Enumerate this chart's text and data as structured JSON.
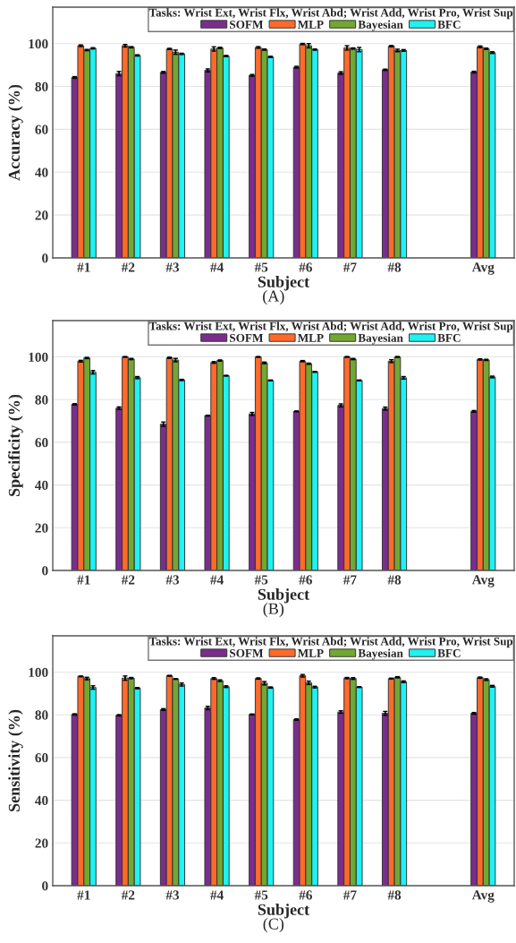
{
  "chart_data": [
    {
      "type": "bar",
      "xlabel": "Subject",
      "ylabel": "Accuracy (%)",
      "legend_title": "Tasks: Wrist Ext, Wrist Flx, Wrist Abd; Wrist Add, Wrist Pro, Wrist Sup",
      "annotations": [
        "(A)"
      ],
      "categories": [
        "#1",
        "#2",
        "#3",
        "#4",
        "#5",
        "#6",
        "#7",
        "#8",
        null,
        "Avg"
      ],
      "ylim": [
        0,
        117
      ],
      "yticks": [
        0,
        20,
        40,
        60,
        80,
        100
      ],
      "grid": "y",
      "legend": "top right",
      "series": [
        {
          "name": "SOFM",
          "color": "#7b2d8e",
          "values": [
            84.2,
            86,
            86.6,
            87.5,
            85.2,
            89,
            86.3,
            87.8,
            null,
            86.7
          ],
          "errors": [
            0.4,
            1,
            0.4,
            0.7,
            0.4,
            0.4,
            0.6,
            0.3,
            null,
            0.4
          ]
        },
        {
          "name": "MLP",
          "color": "#ff6a2b",
          "values": [
            99,
            99,
            97.5,
            97.5,
            98.2,
            99.8,
            98,
            98.8,
            null,
            98.5
          ],
          "errors": [
            0.4,
            0.6,
            0.3,
            1,
            0.4,
            0.3,
            1,
            0.3,
            null,
            0.4
          ]
        },
        {
          "name": "Bayesian",
          "color": "#72a832",
          "values": [
            97,
            98.3,
            96,
            98,
            97.2,
            99,
            97.7,
            96.8,
            null,
            97.6
          ],
          "errors": [
            0.3,
            0.3,
            1,
            0.3,
            0.3,
            1,
            0.3,
            0.6,
            null,
            0.3
          ]
        },
        {
          "name": "BFC",
          "color": "#1ef2f2",
          "values": [
            97.8,
            94.5,
            95.2,
            94.2,
            93.8,
            97.2,
            97.2,
            96.8,
            null,
            95.8
          ],
          "errors": [
            0.3,
            0.3,
            0.3,
            0.3,
            0.3,
            0.3,
            1,
            0.4,
            null,
            0.4
          ]
        }
      ]
    },
    {
      "type": "bar",
      "xlabel": "Subject",
      "ylabel": "Specificity (%)",
      "legend_title": "Tasks: Wrist Ext, Wrist Flx, Wrist Abd; Wrist Add, Wrist Pro, Wrist Sup",
      "annotations": [
        "(B)"
      ],
      "categories": [
        "#1",
        "#2",
        "#3",
        "#4",
        "#5",
        "#6",
        "#7",
        "#8",
        null,
        "Avg"
      ],
      "ylim": [
        0,
        117
      ],
      "yticks": [
        0,
        20,
        40,
        60,
        80,
        100
      ],
      "grid": "y",
      "legend": "top right",
      "series": [
        {
          "name": "SOFM",
          "color": "#7b2d8e",
          "values": [
            77.8,
            76,
            68.5,
            72.5,
            73.3,
            74.5,
            77.3,
            75.8,
            null,
            74.5
          ],
          "errors": [
            0.3,
            0.6,
            1,
            0.2,
            0.7,
            0.2,
            0.7,
            0.7,
            null,
            0.4
          ]
        },
        {
          "name": "MLP",
          "color": "#ff6a2b",
          "values": [
            98,
            100,
            99.6,
            97.4,
            100,
            98,
            100,
            98,
            null,
            98.8
          ],
          "errors": [
            0.4,
            0.2,
            0.3,
            0.4,
            0.2,
            0.3,
            0.2,
            0.7,
            null,
            0.3
          ]
        },
        {
          "name": "Bayesian",
          "color": "#72a832",
          "values": [
            99.5,
            99,
            98.5,
            98.3,
            97.2,
            96.8,
            99,
            100,
            null,
            98.6
          ],
          "errors": [
            0.3,
            0.3,
            0.8,
            0.3,
            0.4,
            0.3,
            0.3,
            0.2,
            null,
            0.3
          ]
        },
        {
          "name": "BFC",
          "color": "#1ef2f2",
          "values": [
            92.8,
            90.3,
            89.2,
            91.2,
            89,
            93,
            89,
            90.2,
            null,
            90.6
          ],
          "errors": [
            0.8,
            0.5,
            0.3,
            0.2,
            0.2,
            0.2,
            0.2,
            0.6,
            null,
            0.4
          ]
        }
      ]
    },
    {
      "type": "bar",
      "xlabel": "Subject",
      "ylabel": "Sensitivity (%)",
      "legend_title": "Tasks: Wrist Ext, Wrist Flx, Wrist Abd; Wrist Add, Wrist Pro, Wrist Sup",
      "annotations": [
        "(C)"
      ],
      "categories": [
        "#1",
        "#2",
        "#3",
        "#4",
        "#5",
        "#6",
        "#7",
        "#8",
        null,
        "Avg"
      ],
      "ylim": [
        0,
        117
      ],
      "yticks": [
        0,
        20,
        40,
        60,
        80,
        100
      ],
      "grid": "y",
      "legend": "top right",
      "series": [
        {
          "name": "SOFM",
          "color": "#7b2d8e",
          "values": [
            80.2,
            79.8,
            82.5,
            83.2,
            80.2,
            77.8,
            81.3,
            80.7,
            null,
            80.7
          ],
          "errors": [
            0.3,
            0.3,
            0.4,
            0.8,
            0.2,
            0.3,
            0.6,
            0.9,
            null,
            0.4
          ]
        },
        {
          "name": "MLP",
          "color": "#ff6a2b",
          "values": [
            98,
            97.2,
            98.3,
            97,
            97,
            98.3,
            97.2,
            97,
            null,
            97.4
          ],
          "errors": [
            0.2,
            1,
            0.2,
            0.4,
            0.3,
            0.6,
            0.3,
            0.2,
            null,
            0.3
          ]
        },
        {
          "name": "Bayesian",
          "color": "#72a832",
          "values": [
            97,
            97.2,
            96.8,
            96,
            94.8,
            95,
            97,
            97.6,
            null,
            96.5
          ],
          "errors": [
            0.6,
            0.3,
            0.2,
            0.4,
            0.8,
            0.8,
            0.4,
            0.3,
            null,
            0.4
          ]
        },
        {
          "name": "BFC",
          "color": "#1ef2f2",
          "values": [
            92.8,
            92.5,
            94.2,
            93.2,
            92.8,
            93,
            93,
            95.5,
            null,
            93.4
          ],
          "errors": [
            0.8,
            0.3,
            0.7,
            0.4,
            0.3,
            0.4,
            0.2,
            0.4,
            null,
            0.4
          ]
        }
      ]
    }
  ]
}
